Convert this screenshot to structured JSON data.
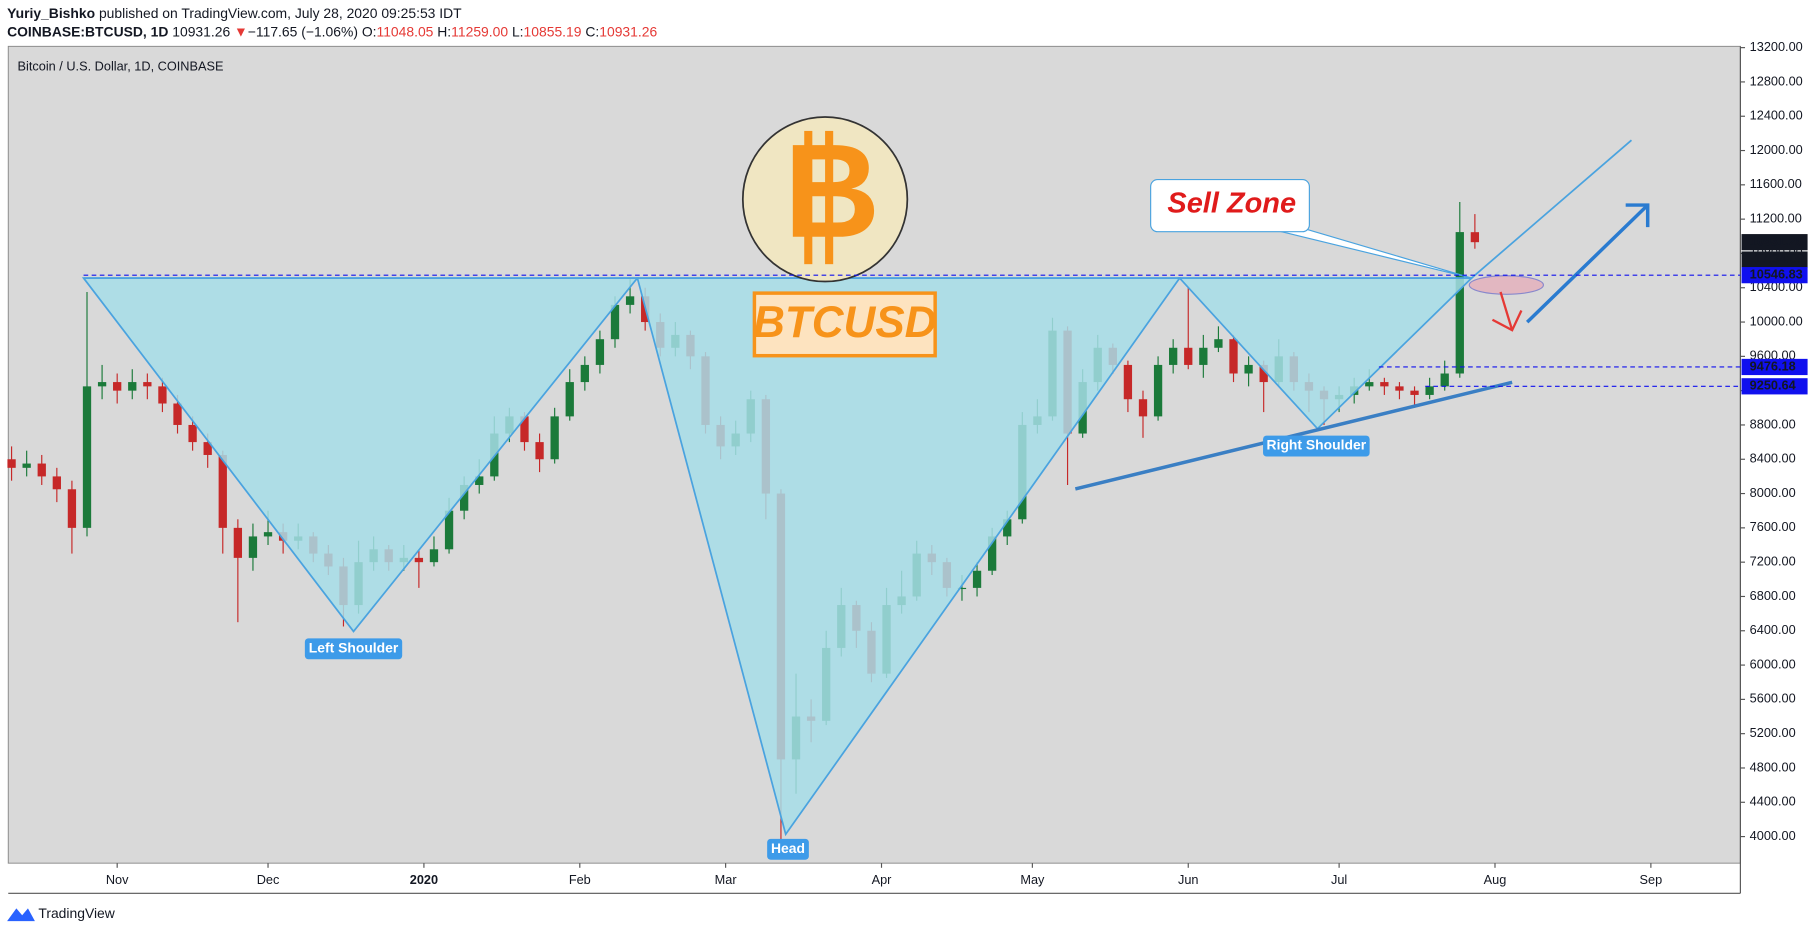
{
  "header": {
    "author": "Yuriy_Bishko",
    "published": "published on TradingView.com, July 28, 2020 09:25:53 IDT",
    "symbol": "COINBASE:BTCUSD, 1D",
    "last": "10931.26",
    "arrow": "▼",
    "change": "−117.65 (−1.06%)",
    "ohlc": [
      {
        "key": "O:",
        "value": "11048.05"
      },
      {
        "key": "H:",
        "value": "11259.00"
      },
      {
        "key": "L:",
        "value": "10855.19"
      },
      {
        "key": "C:",
        "value": "10931.26"
      }
    ]
  },
  "chart_data": {
    "type": "candlestick",
    "title": "Bitcoin / U.S. Dollar, 1D, COINBASE",
    "up_color": "#1b7a3a",
    "down_color": "#c62828",
    "x": [
      -21,
      -18,
      -15,
      -12,
      -9,
      -6,
      -3,
      0,
      3,
      6,
      9,
      12,
      15,
      18,
      21,
      24,
      27,
      30,
      33,
      36,
      39,
      42,
      45,
      48,
      51,
      54,
      57,
      60,
      63,
      66,
      69,
      72,
      75,
      78,
      81,
      84,
      87,
      90,
      93,
      96,
      99,
      102,
      105,
      108,
      111,
      114,
      117,
      120,
      123,
      126,
      129,
      132,
      135,
      138,
      141,
      144,
      147,
      150,
      153,
      156,
      159,
      162,
      165,
      168,
      171,
      174,
      177,
      180,
      183,
      186,
      189,
      192,
      195,
      198,
      201,
      204,
      207,
      210,
      213,
      216,
      219,
      222,
      225,
      228,
      231,
      234,
      237,
      240,
      243,
      246,
      249,
      252,
      255,
      258,
      261,
      264,
      267,
      270
    ],
    "open": [
      8400,
      8300,
      8350,
      8200,
      8050,
      7600,
      9250,
      9300,
      9200,
      9300,
      9250,
      9050,
      8800,
      8600,
      8450,
      7600,
      7250,
      7500,
      7550,
      7450,
      7500,
      7300,
      7150,
      6700,
      7200,
      7350,
      7200,
      7250,
      7200,
      7350,
      7800,
      8100,
      8200,
      8700,
      8900,
      8600,
      8400,
      8900,
      9300,
      9500,
      9800,
      10200,
      10300,
      10000,
      9700,
      9850,
      9600,
      8800,
      8550,
      8700,
      9100,
      8000,
      4900,
      5400,
      5350,
      6200,
      6700,
      6400,
      5900,
      6700,
      6800,
      7300,
      7200,
      6900,
      6900,
      7100,
      7500,
      7700,
      8800,
      8900,
      9900,
      8700,
      9300,
      9700,
      9500,
      9100,
      8900,
      9500,
      9700,
      9500,
      9700,
      9800,
      9400,
      9500,
      9300,
      9600,
      9300,
      9200,
      9100,
      9150,
      9250,
      9300,
      9250,
      9200,
      9150,
      9250,
      9400,
      11048.05
    ],
    "high": [
      8550,
      8500,
      8450,
      8300,
      8150,
      10350,
      9500,
      9400,
      9450,
      9400,
      9350,
      9150,
      8900,
      8700,
      8500,
      7700,
      7650,
      7800,
      7650,
      7650,
      7550,
      7400,
      7250,
      7450,
      7500,
      7400,
      7400,
      7350,
      7500,
      7950,
      8200,
      8400,
      8900,
      9000,
      8950,
      8700,
      9000,
      9450,
      9600,
      9900,
      10300,
      10500,
      10400,
      10100,
      10000,
      9900,
      9650,
      8900,
      8850,
      9200,
      9150,
      8050,
      5900,
      5600,
      6400,
      6900,
      6750,
      6500,
      6900,
      7100,
      7450,
      7400,
      7250,
      7050,
      7200,
      7600,
      7800,
      8950,
      9100,
      10050,
      9950,
      9450,
      9850,
      9750,
      9550,
      9200,
      9600,
      9800,
      10400,
      9850,
      9950,
      9850,
      9600,
      9550,
      9800,
      9650,
      9400,
      9250,
      9250,
      9350,
      9450,
      9350,
      9300,
      9250,
      9350,
      9550,
      11400,
      11259.0
    ],
    "low": [
      8150,
      8200,
      8100,
      7900,
      7300,
      7500,
      9100,
      9050,
      9100,
      9100,
      8950,
      8700,
      8500,
      8300,
      7300,
      6500,
      7100,
      7400,
      7300,
      7350,
      7200,
      7050,
      6450,
      6600,
      7100,
      7100,
      7100,
      6900,
      7150,
      7300,
      7700,
      8000,
      8150,
      8600,
      8500,
      8250,
      8350,
      8850,
      9200,
      9400,
      9700,
      10100,
      9900,
      9600,
      9600,
      9450,
      8700,
      8400,
      8450,
      8600,
      7700,
      3950,
      4500,
      5100,
      5300,
      6100,
      6200,
      5800,
      5850,
      6600,
      6750,
      7050,
      6800,
      6750,
      6800,
      7050,
      7400,
      7650,
      8700,
      8850,
      8100,
      8650,
      9200,
      9400,
      8950,
      8650,
      8850,
      9400,
      9450,
      9350,
      9650,
      9300,
      9250,
      8950,
      9250,
      9200,
      8950,
      8800,
      8950,
      9050,
      9200,
      9150,
      9100,
      9000,
      9100,
      9200,
      9350,
      10855.19
    ],
    "close": [
      8300,
      8350,
      8200,
      8050,
      7600,
      9250,
      9300,
      9200,
      9300,
      9250,
      9050,
      8800,
      8600,
      8450,
      7600,
      7250,
      7500,
      7550,
      7450,
      7500,
      7300,
      7150,
      6700,
      7200,
      7350,
      7200,
      7250,
      7200,
      7350,
      7800,
      8100,
      8200,
      8700,
      8900,
      8600,
      8400,
      8900,
      9300,
      9500,
      9800,
      10200,
      10300,
      10000,
      9700,
      9850,
      9600,
      8800,
      8550,
      8700,
      9100,
      8000,
      4900,
      5400,
      5350,
      6200,
      6700,
      6400,
      5900,
      6700,
      6800,
      7300,
      7200,
      6900,
      6900,
      7100,
      7500,
      7700,
      8800,
      8900,
      9900,
      8700,
      9300,
      9700,
      9500,
      9100,
      8900,
      9500,
      9700,
      9500,
      9700,
      9800,
      9400,
      9500,
      9300,
      9600,
      9300,
      9200,
      9100,
      9150,
      9250,
      9300,
      9250,
      9200,
      9150,
      9250,
      9400,
      11049,
      10931.26
    ],
    "xlim": [
      -21.66,
      322.8
    ],
    "xticks": [
      {
        "value": 0,
        "label": "Nov"
      },
      {
        "value": 30,
        "label": "Dec"
      },
      {
        "value": 61,
        "label": "2020"
      },
      {
        "value": 92,
        "label": "Feb"
      },
      {
        "value": 121,
        "label": "Mar"
      },
      {
        "value": 152,
        "label": "Apr"
      },
      {
        "value": 182,
        "label": "May"
      },
      {
        "value": 213,
        "label": "Jun"
      },
      {
        "value": 243,
        "label": "Jul"
      },
      {
        "value": 274,
        "label": "Aug"
      },
      {
        "value": 305,
        "label": "Sep"
      }
    ],
    "ylim": [
      3690,
      13215
    ],
    "yticks": [
      {
        "value": 4000,
        "label": "4000.00"
      },
      {
        "value": 4400,
        "label": "4400.00"
      },
      {
        "value": 4800,
        "label": "4800.00"
      },
      {
        "value": 5200,
        "label": "5200.00"
      },
      {
        "value": 5600,
        "label": "5600.00"
      },
      {
        "value": 6000,
        "label": "6000.00"
      },
      {
        "value": 6400,
        "label": "6400.00"
      },
      {
        "value": 6800,
        "label": "6800.00"
      },
      {
        "value": 7200,
        "label": "7200.00"
      },
      {
        "value": 7600,
        "label": "7600.00"
      },
      {
        "value": 8000,
        "label": "8000.00"
      },
      {
        "value": 8400,
        "label": "8400.00"
      },
      {
        "value": 8800,
        "label": "8800.00"
      },
      {
        "value": 9200,
        "label": "9200.00"
      },
      {
        "value": 9600,
        "label": "9600.00"
      },
      {
        "value": 10000,
        "label": "10000.00"
      },
      {
        "value": 10400,
        "label": "10400.00"
      },
      {
        "value": 10800,
        "label": "10800.00"
      },
      {
        "value": 11200,
        "label": "11200.00"
      },
      {
        "value": 11600,
        "label": "11600.00"
      },
      {
        "value": 12000,
        "label": "12000.00"
      },
      {
        "value": 12400,
        "label": "12400.00"
      },
      {
        "value": 12800,
        "label": "12800.00"
      },
      {
        "value": 13200,
        "label": "13200.00"
      }
    ],
    "grid": false,
    "markers": [
      {
        "price": 10931.26,
        "color": "#131722"
      },
      {
        "price": 10546.83,
        "color": "#1010ee"
      },
      {
        "price": 9476.18,
        "color": "#1010ee"
      },
      {
        "price": 9250.64,
        "color": "#1010ee"
      }
    ],
    "countdown": "17:34:09",
    "annotations": {
      "logo": "B",
      "ticker": "BTCUSD",
      "sell": "Sell Zone",
      "left": "Left Shoulder",
      "head": "Head",
      "right": "Right Shoulder"
    }
  },
  "footer": {
    "brand": "TradingView"
  }
}
